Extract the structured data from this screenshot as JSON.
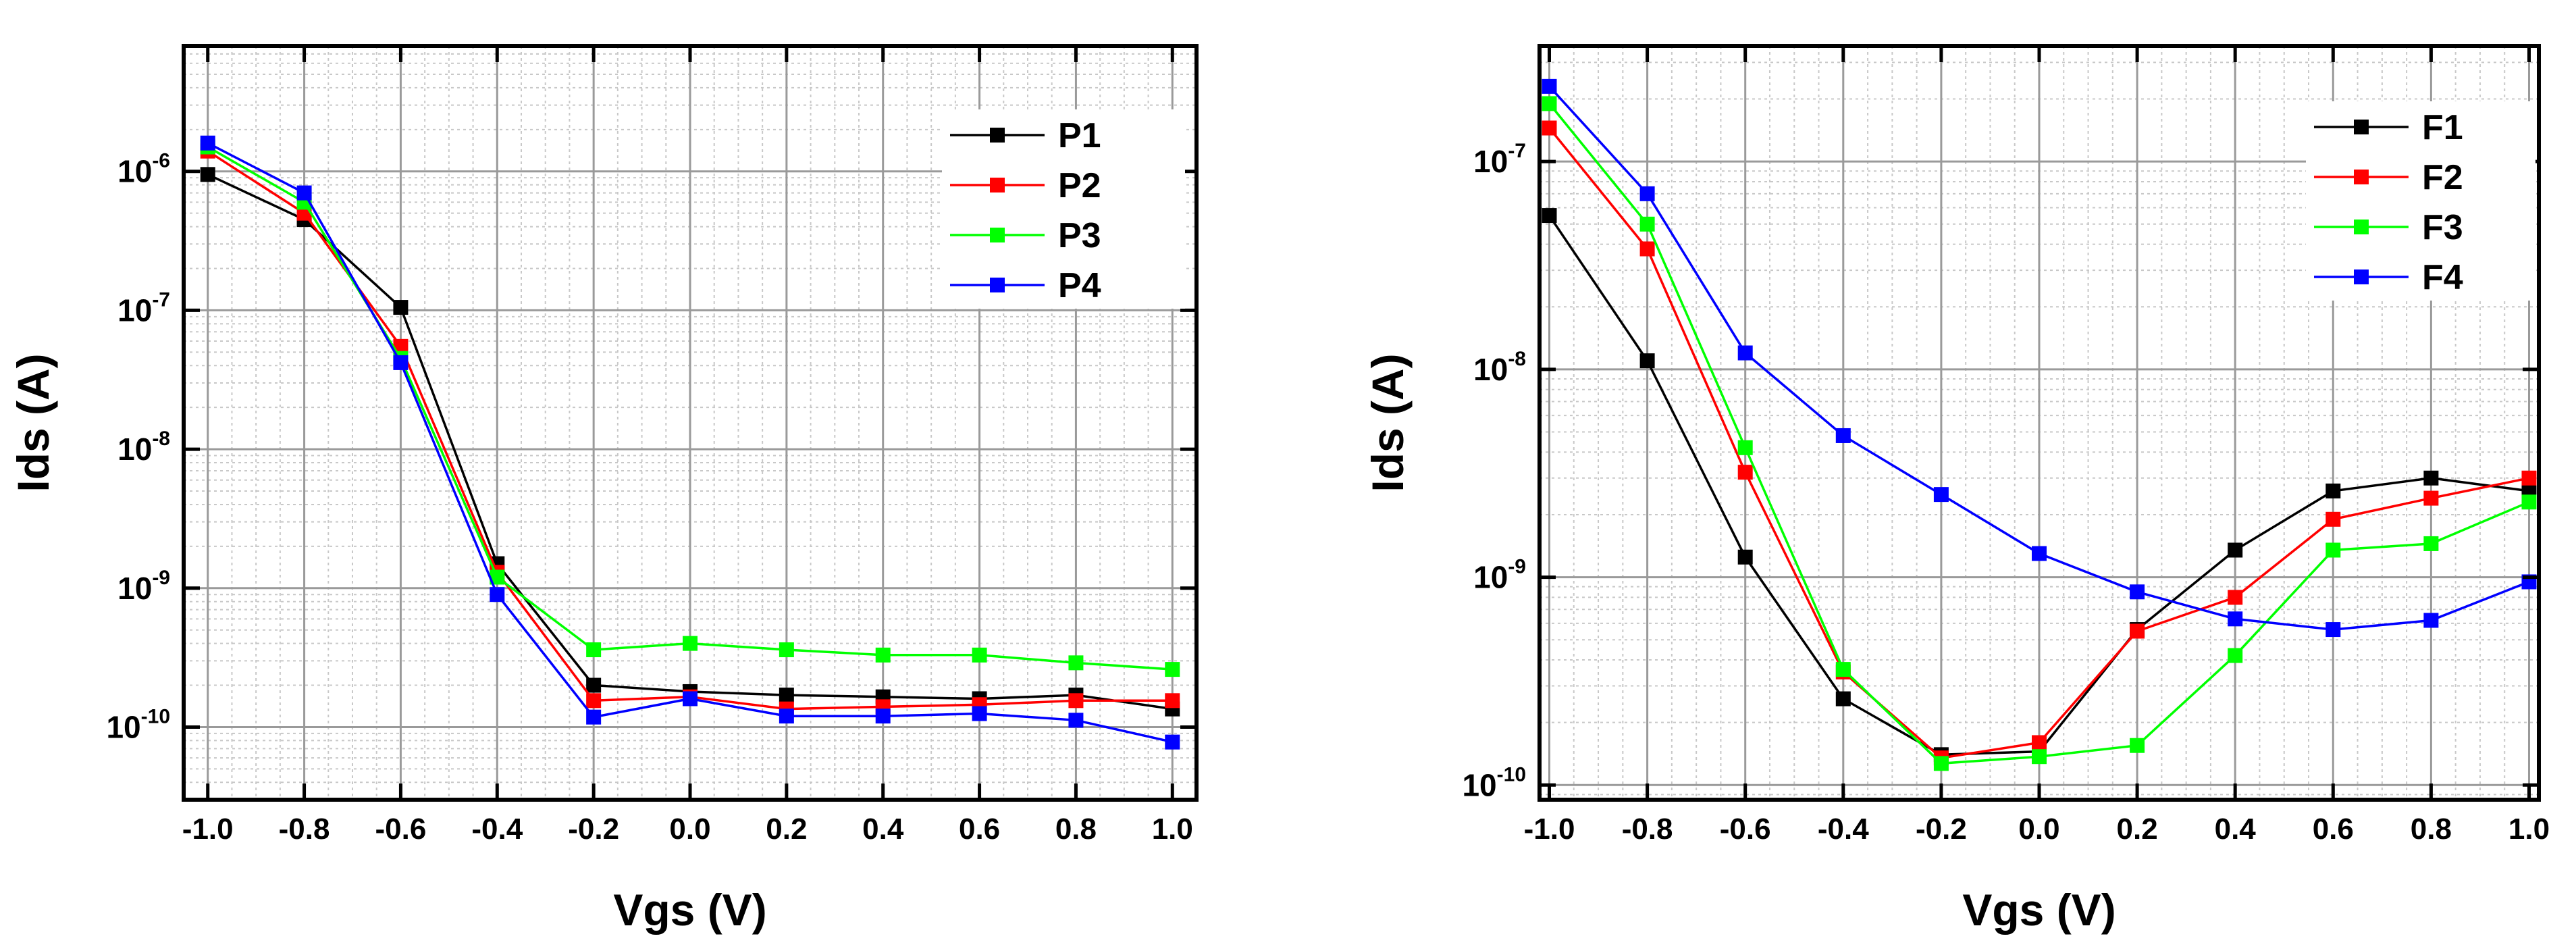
{
  "chart_data": [
    {
      "type": "line",
      "y_scale": "log",
      "title": "",
      "xlabel": "Vgs (V)",
      "ylabel": "Ids (A)",
      "xlim": [
        -1.05,
        1.05
      ],
      "ylim": [
        3e-11,
        8e-06
      ],
      "x_ticks": [
        -1.0,
        -0.8,
        -0.6,
        -0.4,
        -0.2,
        0.0,
        0.2,
        0.4,
        0.6,
        0.8,
        1.0
      ],
      "x_tick_labels": [
        "-1.0",
        "-0.8",
        "-0.6",
        "-0.4",
        "-0.2",
        "0.0",
        "0.2",
        "0.4",
        "0.6",
        "0.8",
        "1.0"
      ],
      "y_ticks": [
        {
          "value": 1e-06,
          "base": "10",
          "exp": "-6"
        },
        {
          "value": 1e-07,
          "base": "10",
          "exp": "-7"
        },
        {
          "value": 1e-08,
          "base": "10",
          "exp": "-8"
        },
        {
          "value": 1e-09,
          "base": "10",
          "exp": "-9"
        },
        {
          "value": 1e-10,
          "base": "10",
          "exp": "-10"
        }
      ],
      "grid": true,
      "legend_position": "top-right",
      "x": [
        -1.0,
        -0.8,
        -0.6,
        -0.4,
        -0.2,
        0.0,
        0.2,
        0.4,
        0.6,
        0.8,
        1.0
      ],
      "series": [
        {
          "name": "P1",
          "color": "#000000",
          "values": [
            9.5e-07,
            4.5e-07,
            1.05e-07,
            1.5e-09,
            2e-10,
            1.8e-10,
            1.7e-10,
            1.65e-10,
            1.6e-10,
            1.7e-10,
            1.35e-10
          ]
        },
        {
          "name": "P2",
          "color": "#ff0000",
          "values": [
            1.4e-06,
            5e-07,
            5.5e-08,
            1.3e-09,
            1.55e-10,
            1.65e-10,
            1.35e-10,
            1.4e-10,
            1.45e-10,
            1.55e-10,
            1.55e-10
          ]
        },
        {
          "name": "P3",
          "color": "#00ff00",
          "values": [
            1.5e-06,
            6e-07,
            4.5e-08,
            1.2e-09,
            3.6e-10,
            4e-10,
            3.6e-10,
            3.3e-10,
            3.3e-10,
            2.9e-10,
            2.6e-10
          ]
        },
        {
          "name": "P4",
          "color": "#0000ff",
          "values": [
            1.6e-06,
            7e-07,
            4.2e-08,
            9e-10,
            1.18e-10,
            1.6e-10,
            1.2e-10,
            1.2e-10,
            1.25e-10,
            1.12e-10,
            7.8e-11
          ]
        }
      ]
    },
    {
      "type": "line",
      "y_scale": "log",
      "title": "",
      "xlabel": "Vgs (V)",
      "ylabel": "Ids (A)",
      "xlim": [
        -1.02,
        1.02
      ],
      "ylim": [
        8.5e-11,
        3.6e-07
      ],
      "x_ticks": [
        -1.0,
        -0.8,
        -0.6,
        -0.4,
        -0.2,
        0.0,
        0.2,
        0.4,
        0.6,
        0.8,
        1.0
      ],
      "x_tick_labels": [
        "-1.0",
        "-0.8",
        "-0.6",
        "-0.4",
        "-0.2",
        "0.0",
        "0.2",
        "0.4",
        "0.6",
        "0.8",
        "1.0"
      ],
      "y_ticks": [
        {
          "value": 1e-07,
          "base": "10",
          "exp": "-7"
        },
        {
          "value": 1e-08,
          "base": "10",
          "exp": "-8"
        },
        {
          "value": 1e-09,
          "base": "10",
          "exp": "-9"
        },
        {
          "value": 1e-10,
          "base": "10",
          "exp": "-10"
        }
      ],
      "grid": true,
      "legend_position": "top-right",
      "x": [
        -1.0,
        -0.8,
        -0.6,
        -0.4,
        -0.2,
        0.0,
        0.2,
        0.4,
        0.6,
        0.8,
        1.0
      ],
      "series": [
        {
          "name": "F1",
          "color": "#000000",
          "values": [
            5.5e-08,
            1.1e-08,
            1.25e-09,
            2.6e-10,
            1.4e-10,
            1.45e-10,
            5.6e-10,
            1.35e-09,
            2.6e-09,
            3e-09,
            2.6e-09
          ]
        },
        {
          "name": "F2",
          "color": "#ff0000",
          "values": [
            1.45e-07,
            3.8e-08,
            3.2e-09,
            3.5e-10,
            1.35e-10,
            1.6e-10,
            5.5e-10,
            8e-10,
            1.9e-09,
            2.4e-09,
            3e-09
          ]
        },
        {
          "name": "F3",
          "color": "#00ff00",
          "values": [
            1.9e-07,
            5e-08,
            4.2e-09,
            3.6e-10,
            1.27e-10,
            1.37e-10,
            1.55e-10,
            4.2e-10,
            1.35e-09,
            1.45e-09,
            2.3e-09
          ]
        },
        {
          "name": "F4",
          "color": "#0000ff",
          "values": [
            2.3e-07,
            7e-08,
            1.2e-08,
            4.8e-09,
            2.5e-09,
            1.3e-09,
            8.5e-10,
            6.3e-10,
            5.6e-10,
            6.2e-10,
            9.5e-10
          ]
        }
      ]
    }
  ]
}
